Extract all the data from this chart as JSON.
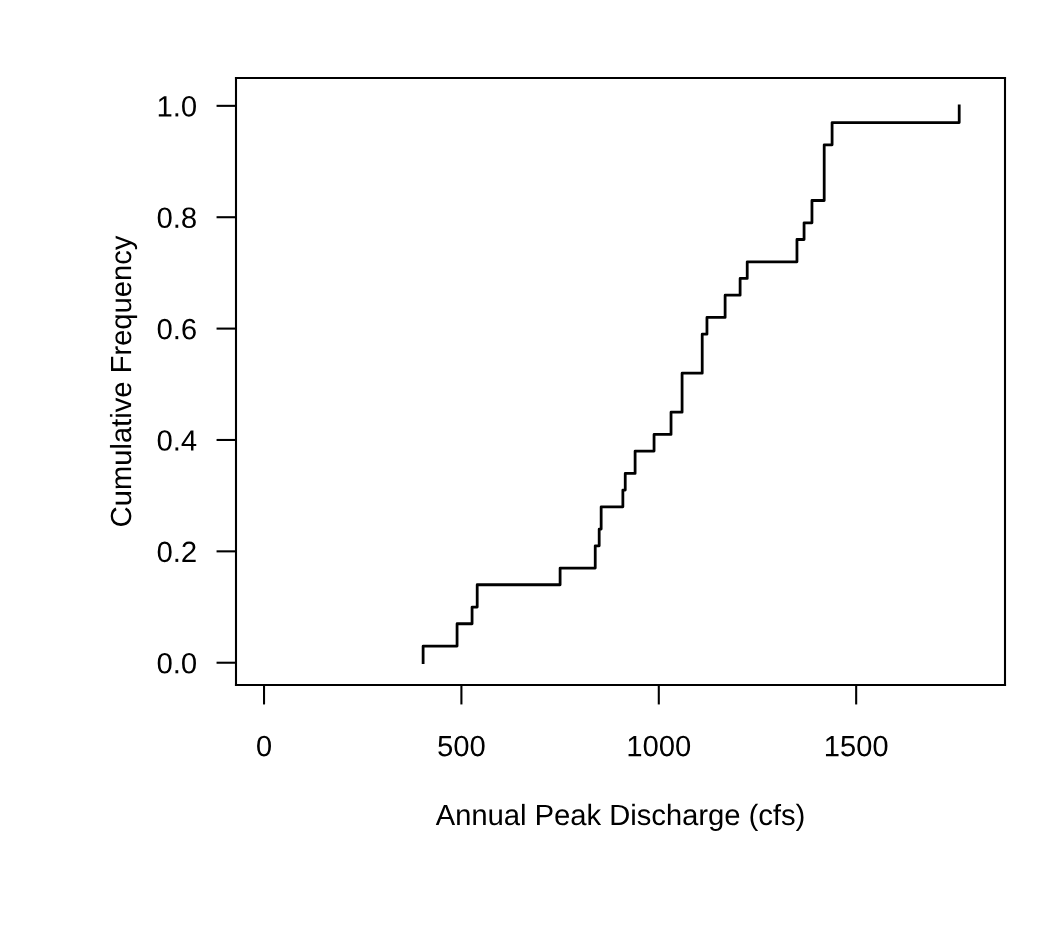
{
  "chart_data": {
    "type": "step",
    "xlabel": "Annual Peak Discharge (cfs)",
    "ylabel": "Cumulative Frequency",
    "x": [
      403,
      403,
      489,
      527,
      540,
      750,
      839,
      849,
      854,
      909,
      915,
      940,
      988,
      1031,
      1059,
      1110,
      1122,
      1168,
      1206,
      1224,
      1350,
      1368,
      1388,
      1419,
      1439,
      1761
    ],
    "series": [
      {
        "color": "#000000",
        "values": [
          0,
          0.03,
          0.07,
          0.1,
          0.14,
          0.17,
          0.21,
          0.24,
          0.28,
          0.31,
          0.34,
          0.38,
          0.41,
          0.45,
          0.52,
          0.59,
          0.62,
          0.66,
          0.69,
          0.72,
          0.76,
          0.79,
          0.83,
          0.93,
          0.97,
          1.0
        ]
      }
    ],
    "xlim": [
      -71,
      1877
    ],
    "ylim": [
      -0.04,
      1.05
    ],
    "xticks": [
      0,
      500,
      1000,
      1500
    ],
    "yticks": [
      {
        "value": 0,
        "label": "0.0"
      },
      {
        "value": 0.2,
        "label": "0.2"
      },
      {
        "value": 0.4,
        "label": "0.4"
      },
      {
        "value": 0.6,
        "label": "0.6"
      },
      {
        "value": 0.8,
        "label": "0.8"
      },
      {
        "value": 1.0,
        "label": "1.0"
      }
    ],
    "grid": false,
    "legend": false
  }
}
